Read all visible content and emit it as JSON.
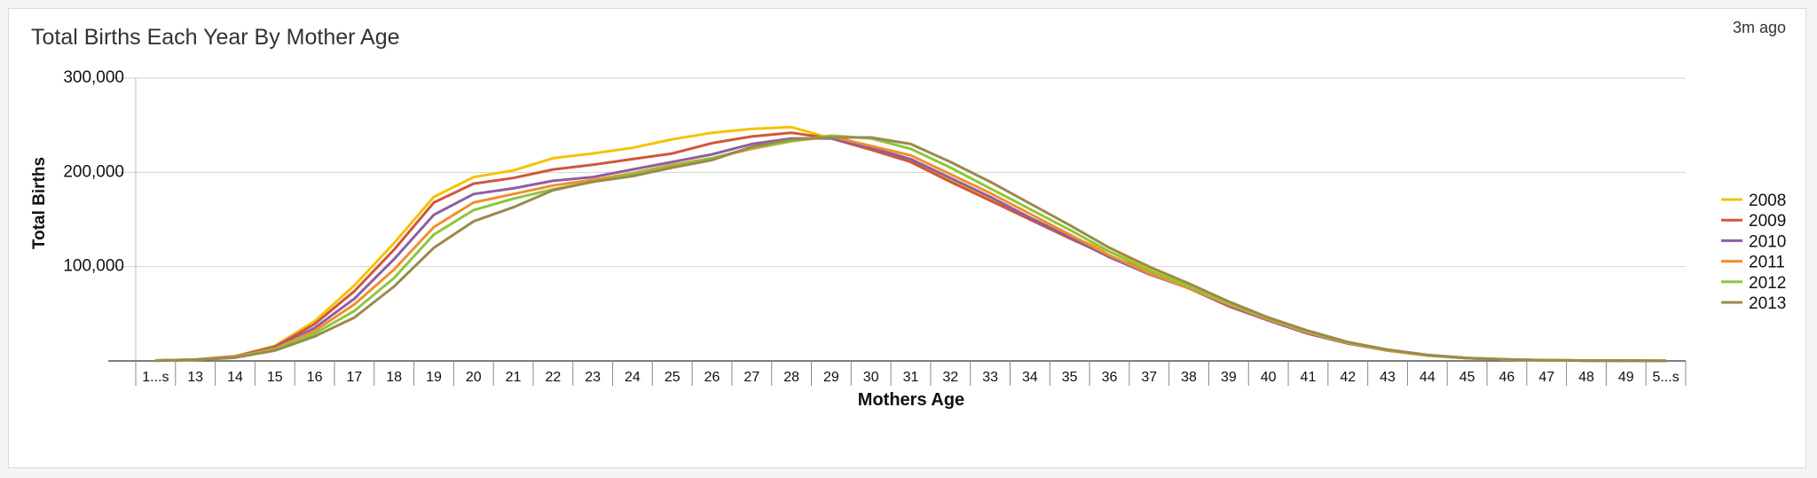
{
  "panel": {
    "title": "Total Births Each Year By Mother Age",
    "timestamp": "3m ago"
  },
  "chart_data": {
    "type": "line",
    "title": "Total Births Each Year By Mother Age",
    "xlabel": "Mothers Age",
    "ylabel": "Total Births",
    "ylim": [
      0,
      300000
    ],
    "yticks": [
      {
        "value": 100000,
        "label": "100,000"
      },
      {
        "value": 200000,
        "label": "200,000"
      },
      {
        "value": 300000,
        "label": "300,000"
      }
    ],
    "grid": true,
    "legend": "right",
    "categories": [
      "1...s",
      "13",
      "14",
      "15",
      "16",
      "17",
      "18",
      "19",
      "20",
      "21",
      "22",
      "23",
      "24",
      "25",
      "26",
      "27",
      "28",
      "29",
      "30",
      "31",
      "32",
      "33",
      "34",
      "35",
      "36",
      "37",
      "38",
      "39",
      "40",
      "41",
      "42",
      "43",
      "44",
      "45",
      "46",
      "47",
      "48",
      "49",
      "5...s"
    ],
    "series": [
      {
        "name": "2008",
        "color": "#f5c200",
        "values": [
          500,
          1500,
          5000,
          16000,
          42000,
          80000,
          125000,
          174000,
          195000,
          202000,
          215000,
          220000,
          226000,
          235000,
          242000,
          246000,
          248000,
          236000,
          226000,
          212000,
          193000,
          172000,
          152000,
          132000,
          116000,
          99000,
          79000,
          60000,
          44000,
          30000,
          19000,
          11000,
          6000,
          3000,
          1500,
          700,
          350,
          150,
          80
        ]
      },
      {
        "name": "2009",
        "color": "#d1563a",
        "values": [
          500,
          1400,
          4800,
          15000,
          39000,
          74000,
          118000,
          168000,
          188000,
          194000,
          203000,
          208000,
          214000,
          220000,
          231000,
          238000,
          242000,
          236000,
          224000,
          211000,
          190000,
          170000,
          150000,
          130000,
          111000,
          95000,
          77000,
          58000,
          43000,
          29000,
          18500,
          11000,
          5800,
          2900,
          1400,
          680,
          340,
          150,
          80
        ]
      },
      {
        "name": "2010",
        "color": "#8e5ea2",
        "values": [
          450,
          1300,
          4500,
          14000,
          35000,
          66000,
          108000,
          155000,
          177000,
          183000,
          191000,
          195000,
          203000,
          211000,
          219000,
          230000,
          236000,
          236000,
          226000,
          214000,
          194000,
          174000,
          152000,
          131000,
          110000,
          92000,
          77000,
          59000,
          43000,
          29000,
          18500,
          11000,
          5800,
          2900,
          1400,
          680,
          340,
          150,
          80
        ]
      },
      {
        "name": "2011",
        "color": "#f28e2b",
        "values": [
          400,
          1200,
          4200,
          13000,
          32000,
          60000,
          97000,
          142000,
          168000,
          177000,
          186000,
          192000,
          199000,
          208000,
          215000,
          225000,
          233000,
          238000,
          228000,
          218000,
          198000,
          178000,
          156000,
          134000,
          112000,
          93000,
          77000,
          60000,
          44000,
          30000,
          19000,
          11000,
          6000,
          3000,
          1500,
          700,
          350,
          150,
          80
        ]
      },
      {
        "name": "2012",
        "color": "#8cc63f",
        "values": [
          350,
          1100,
          3800,
          12000,
          29000,
          53000,
          88000,
          134000,
          160000,
          172000,
          182000,
          190000,
          198000,
          207000,
          215000,
          226000,
          233000,
          239000,
          236000,
          225000,
          205000,
          183000,
          161000,
          139000,
          116000,
          96000,
          79000,
          61000,
          45000,
          31000,
          19500,
          11500,
          6200,
          3100,
          1500,
          700,
          350,
          150,
          80
        ]
      },
      {
        "name": "2013",
        "color": "#9b8a4c",
        "values": [
          300,
          1000,
          3500,
          11000,
          26000,
          46000,
          79000,
          120000,
          148000,
          163000,
          181000,
          190000,
          196000,
          205000,
          213000,
          227000,
          235000,
          237000,
          237000,
          230000,
          211000,
          190000,
          167000,
          144000,
          120000,
          100000,
          82000,
          63000,
          46000,
          32000,
          20000,
          12000,
          6400,
          3200,
          1600,
          750,
          370,
          160,
          80
        ]
      }
    ]
  }
}
